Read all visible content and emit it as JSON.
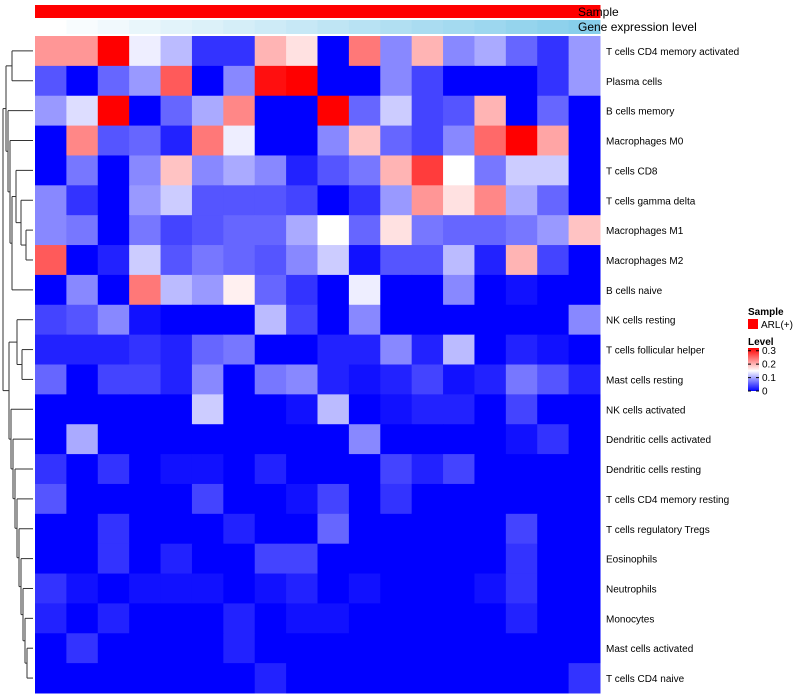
{
  "chart_data": {
    "type": "heatmap",
    "column_annotations": [
      {
        "label": "Sample",
        "color": "#ff0000"
      },
      {
        "label": "Gene expression level",
        "colors": [
          "#ffffff",
          "#87ceeb"
        ]
      }
    ],
    "rows": [
      "T cells CD4 memory activated",
      "Plasma cells",
      "B cells memory",
      "Macrophages M0",
      "T cells CD8",
      "T cells gamma delta",
      "Macrophages M1",
      "Macrophages M2",
      "B cells naive",
      "NK cells resting",
      "T cells follicular helper",
      "Mast cells resting",
      "NK cells activated",
      "Dendritic cells activated",
      "Dendritic cells resting",
      "T cells CD4 memory resting",
      "T cells regulatory  Tregs",
      "Eosinophils",
      "Neutrophils",
      "Monocytes",
      "Mast cells activated",
      "T cells CD4 naive"
    ],
    "n_columns": 18,
    "values": [
      [
        0.22,
        0.22,
        0.32,
        0.14,
        0.11,
        0.03,
        0.03,
        0.2,
        0.17,
        0.0,
        0.24,
        0.08,
        0.2,
        0.08,
        0.1,
        0.06,
        0.03,
        0.09
      ],
      [
        0.05,
        0.0,
        0.06,
        0.09,
        0.26,
        0.0,
        0.08,
        0.31,
        0.32,
        0.0,
        0.0,
        0.08,
        0.04,
        0.0,
        0.0,
        0.0,
        0.03,
        0.09
      ],
      [
        0.09,
        0.13,
        0.32,
        0.0,
        0.06,
        0.1,
        0.23,
        0.0,
        0.0,
        0.32,
        0.06,
        0.12,
        0.04,
        0.05,
        0.2,
        0.0,
        0.06,
        0.0
      ],
      [
        0.0,
        0.23,
        0.05,
        0.06,
        0.02,
        0.24,
        0.14,
        0.0,
        0.0,
        0.08,
        0.19,
        0.06,
        0.04,
        0.08,
        0.25,
        0.32,
        0.21,
        0.0
      ],
      [
        0.0,
        0.07,
        0.0,
        0.08,
        0.19,
        0.08,
        0.1,
        0.08,
        0.02,
        0.05,
        0.07,
        0.2,
        0.28,
        0.15,
        0.07,
        0.12,
        0.12,
        0.0
      ],
      [
        0.08,
        0.03,
        0.0,
        0.09,
        0.12,
        0.05,
        0.05,
        0.05,
        0.04,
        0.0,
        0.03,
        0.09,
        0.22,
        0.17,
        0.23,
        0.1,
        0.06,
        0.0
      ],
      [
        0.08,
        0.07,
        0.0,
        0.07,
        0.04,
        0.05,
        0.06,
        0.06,
        0.1,
        0.15,
        0.06,
        0.17,
        0.07,
        0.06,
        0.06,
        0.07,
        0.09,
        0.19
      ],
      [
        0.26,
        0.0,
        0.02,
        0.12,
        0.05,
        0.07,
        0.06,
        0.05,
        0.08,
        0.12,
        0.01,
        0.05,
        0.05,
        0.11,
        0.02,
        0.2,
        0.04,
        0.0
      ],
      [
        0.0,
        0.08,
        0.0,
        0.24,
        0.11,
        0.09,
        0.16,
        0.06,
        0.03,
        0.0,
        0.14,
        0.0,
        0.0,
        0.08,
        0.0,
        0.01,
        0.0,
        0.0
      ],
      [
        0.04,
        0.05,
        0.08,
        0.01,
        0.0,
        0.0,
        0.0,
        0.11,
        0.04,
        0.0,
        0.08,
        0.0,
        0.0,
        0.0,
        0.0,
        0.0,
        0.0,
        0.08
      ],
      [
        0.02,
        0.02,
        0.02,
        0.03,
        0.02,
        0.06,
        0.07,
        0.0,
        0.0,
        0.02,
        0.02,
        0.08,
        0.02,
        0.11,
        0.0,
        0.02,
        0.01,
        0.0
      ],
      [
        0.06,
        0.0,
        0.04,
        0.04,
        0.02,
        0.08,
        0.0,
        0.07,
        0.08,
        0.02,
        0.01,
        0.02,
        0.04,
        0.01,
        0.02,
        0.07,
        0.05,
        0.02
      ],
      [
        0.0,
        0.0,
        0.0,
        0.0,
        0.0,
        0.12,
        0.0,
        0.0,
        0.01,
        0.11,
        0.0,
        0.01,
        0.02,
        0.02,
        0.0,
        0.04,
        0.0,
        0.0
      ],
      [
        0.0,
        0.1,
        0.0,
        0.0,
        0.0,
        0.0,
        0.0,
        0.0,
        0.0,
        0.0,
        0.08,
        0.0,
        0.0,
        0.0,
        0.0,
        0.01,
        0.03,
        0.0
      ],
      [
        0.03,
        0.0,
        0.03,
        0.0,
        0.01,
        0.01,
        0.0,
        0.02,
        0.0,
        0.0,
        0.0,
        0.04,
        0.02,
        0.04,
        0.0,
        0.0,
        0.0,
        0.0
      ],
      [
        0.05,
        0.0,
        0.0,
        0.0,
        0.0,
        0.04,
        0.0,
        0.0,
        0.01,
        0.04,
        0.0,
        0.03,
        0.0,
        0.0,
        0.0,
        0.0,
        0.0,
        0.0
      ],
      [
        0.0,
        0.0,
        0.03,
        0.0,
        0.0,
        0.0,
        0.02,
        0.0,
        0.0,
        0.06,
        0.0,
        0.0,
        0.0,
        0.0,
        0.0,
        0.04,
        0.0,
        0.0
      ],
      [
        0.0,
        0.0,
        0.03,
        0.0,
        0.02,
        0.0,
        0.0,
        0.04,
        0.04,
        0.0,
        0.0,
        0.0,
        0.0,
        0.0,
        0.0,
        0.03,
        0.0,
        0.0
      ],
      [
        0.03,
        0.01,
        0.0,
        0.01,
        0.01,
        0.01,
        0.0,
        0.01,
        0.02,
        0.0,
        0.01,
        0.0,
        0.0,
        0.0,
        0.01,
        0.03,
        0.0,
        0.0
      ],
      [
        0.02,
        0.0,
        0.02,
        0.0,
        0.0,
        0.0,
        0.02,
        0.0,
        0.01,
        0.01,
        0.0,
        0.0,
        0.0,
        0.0,
        0.0,
        0.02,
        0.0,
        0.0
      ],
      [
        0.0,
        0.03,
        0.0,
        0.0,
        0.0,
        0.0,
        0.02,
        0.0,
        0.0,
        0.0,
        0.0,
        0.0,
        0.0,
        0.0,
        0.0,
        0.0,
        0.0,
        0.0
      ],
      [
        0.0,
        0.0,
        0.0,
        0.0,
        0.0,
        0.0,
        0.0,
        0.02,
        0.0,
        0.0,
        0.0,
        0.0,
        0.0,
        0.0,
        0.0,
        0.0,
        0.0,
        0.03
      ]
    ],
    "gene_expression_level": [
      0.0,
      0.06,
      0.12,
      0.18,
      0.24,
      0.29,
      0.35,
      0.41,
      0.47,
      0.53,
      0.59,
      0.65,
      0.71,
      0.76,
      0.82,
      0.88,
      0.94,
      1.0
    ],
    "color_scale": {
      "low": "#0000ff",
      "mid": "#ffffff",
      "high": "#ff0000",
      "min": 0,
      "mid_value": 0.15,
      "max": 0.32
    },
    "legend": {
      "sample_title": "Sample",
      "sample_entry": "ARL(+)",
      "sample_color": "#ff0000",
      "level_title": "Level",
      "level_ticks": [
        {
          "value": 0.3,
          "label": "0.3"
        },
        {
          "value": 0.2,
          "label": "0.2"
        },
        {
          "value": 0.1,
          "label": "0.1"
        },
        {
          "value": 0.0,
          "label": "0"
        }
      ]
    }
  }
}
